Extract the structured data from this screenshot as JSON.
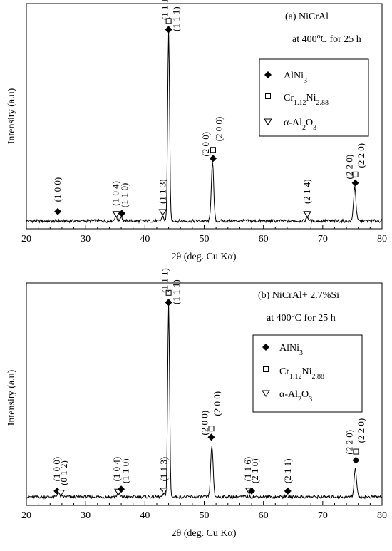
{
  "chart_data": [
    {
      "type": "line",
      "panel_label": "(a) NiCrAl",
      "condition": "at 400°C for 25 h",
      "xlabel": "2θ (deg. Cu Kα)",
      "ylabel": "Intensity (a.u)",
      "xlim": [
        20,
        80
      ],
      "xticks": [
        20,
        30,
        40,
        50,
        60,
        70,
        80
      ],
      "legend": [
        "AlNi3",
        "Cr1.12Ni2.88",
        "α-Al2O3"
      ],
      "legend_position": "right",
      "series": [
        {
          "peaks": [
            {
              "x": 35.1,
              "h": 0.03
            },
            {
              "x": 36.0,
              "h": 0.025
            },
            {
              "x": 43.0,
              "h": 0.025
            },
            {
              "x": 44.0,
              "h": 1.0
            },
            {
              "x": 51.4,
              "h": 0.31
            },
            {
              "x": 67.4,
              "h": 0.02
            },
            {
              "x": 75.4,
              "h": 0.18
            }
          ]
        }
      ],
      "markers": [
        {
          "x": 25.3,
          "level": 0.05,
          "type": "AlNi3"
        },
        {
          "x": 35.2,
          "level": 0.035,
          "type": "Al2O3"
        },
        {
          "x": 36.1,
          "level": 0.04,
          "type": "AlNi3"
        },
        {
          "x": 43.0,
          "level": 0.045,
          "type": "Al2O3"
        },
        {
          "x": 44.0,
          "level": 1.01,
          "type": "AlNi3"
        },
        {
          "x": 44.0,
          "level": 1.055,
          "type": "Cr"
        },
        {
          "x": 51.5,
          "level": 0.33,
          "type": "AlNi3"
        },
        {
          "x": 51.5,
          "level": 0.375,
          "type": "Cr"
        },
        {
          "x": 67.4,
          "level": 0.035,
          "type": "Al2O3"
        },
        {
          "x": 75.5,
          "level": 0.2,
          "type": "AlNi3"
        },
        {
          "x": 75.5,
          "level": 0.245,
          "type": "Cr"
        }
      ],
      "annotations": [
        {
          "text": "(1 0 0)",
          "x": 25.3,
          "level": 0.1
        },
        {
          "text": "(1 0 4)",
          "x": 35.1,
          "level": 0.08
        },
        {
          "text": "(1 1 0)",
          "x": 36.6,
          "level": 0.07
        },
        {
          "text": "(1 1 3)",
          "x": 43.0,
          "level": 0.09
        },
        {
          "text": "(1 1 1)",
          "x": 43.4,
          "level": 1.06
        },
        {
          "text": "(1 1 1)",
          "x": 45.3,
          "level": 1.0
        },
        {
          "text": "(2 0 0)",
          "x": 50.3,
          "level": 0.34
        },
        {
          "text": "(2 0 0)",
          "x": 52.5,
          "level": 0.42
        },
        {
          "text": "(2 1 4)",
          "x": 67.4,
          "level": 0.09
        },
        {
          "text": "(2 2 0)",
          "x": 74.5,
          "level": 0.22
        },
        {
          "text": "(2 2 0)",
          "x": 76.5,
          "level": 0.28
        }
      ]
    },
    {
      "type": "line",
      "panel_label": "(b) NiCrAl+ 2.7%Si",
      "condition": "at 400°C for 25 h",
      "xlabel": "2θ (deg. Cu Kα)",
      "ylabel": "Intensity (a.u)",
      "xlim": [
        20,
        80
      ],
      "xticks": [
        20,
        30,
        40,
        50,
        60,
        70,
        80
      ],
      "legend": [
        "AlNi3",
        "Cr1.12Ni2.88",
        "α-Al2O3"
      ],
      "legend_position": "right",
      "series": [
        {
          "peaks": [
            {
              "x": 25.4,
              "h": 0.02
            },
            {
              "x": 35.5,
              "h": 0.025
            },
            {
              "x": 43.2,
              "h": 0.02
            },
            {
              "x": 44.0,
              "h": 1.0
            },
            {
              "x": 51.3,
              "h": 0.27
            },
            {
              "x": 75.5,
              "h": 0.15
            }
          ]
        }
      ],
      "markers": [
        {
          "x": 25.2,
          "level": 0.03,
          "type": "AlNi3"
        },
        {
          "x": 25.8,
          "level": 0.02,
          "type": "Al2O3"
        },
        {
          "x": 35.5,
          "level": 0.025,
          "type": "Al2O3"
        },
        {
          "x": 36.0,
          "level": 0.04,
          "type": "AlNi3"
        },
        {
          "x": 43.2,
          "level": 0.03,
          "type": "Al2O3"
        },
        {
          "x": 44.0,
          "level": 1.01,
          "type": "AlNi3"
        },
        {
          "x": 44.0,
          "level": 1.06,
          "type": "Cr"
        },
        {
          "x": 51.2,
          "level": 0.31,
          "type": "AlNi3"
        },
        {
          "x": 51.2,
          "level": 0.355,
          "type": "Cr"
        },
        {
          "x": 57.6,
          "level": 0.03,
          "type": "Al2O3"
        },
        {
          "x": 58.0,
          "level": 0.03,
          "type": "AlNi3"
        },
        {
          "x": 64.1,
          "level": 0.03,
          "type": "AlNi3"
        },
        {
          "x": 75.6,
          "level": 0.19,
          "type": "AlNi3"
        },
        {
          "x": 75.6,
          "level": 0.235,
          "type": "Cr"
        }
      ],
      "annotations": [
        {
          "text": "(1 0 0)",
          "x": 25.2,
          "level": 0.08
        },
        {
          "text": "(0 1 2)",
          "x": 26.4,
          "level": 0.06
        },
        {
          "text": "(1 0 4)",
          "x": 35.3,
          "level": 0.08
        },
        {
          "text": "(1 1 0)",
          "x": 36.8,
          "level": 0.07
        },
        {
          "text": "(1 1 3)",
          "x": 43.2,
          "level": 0.08
        },
        {
          "text": "(1 1 1)",
          "x": 43.4,
          "level": 1.06
        },
        {
          "text": "(1 1 1)",
          "x": 45.3,
          "level": 1.0
        },
        {
          "text": "(2 0 0)",
          "x": 50.1,
          "level": 0.32
        },
        {
          "text": "(2 0 0)",
          "x": 52.2,
          "level": 0.42
        },
        {
          "text": "(1 1 6)",
          "x": 57.4,
          "level": 0.08
        },
        {
          "text": "(2 1 0)",
          "x": 58.6,
          "level": 0.07
        },
        {
          "text": "(2 1 1)",
          "x": 64.1,
          "level": 0.07
        },
        {
          "text": "(2 2 0)",
          "x": 74.5,
          "level": 0.22
        },
        {
          "text": "(2 2 0)",
          "x": 76.5,
          "level": 0.28
        }
      ]
    }
  ]
}
